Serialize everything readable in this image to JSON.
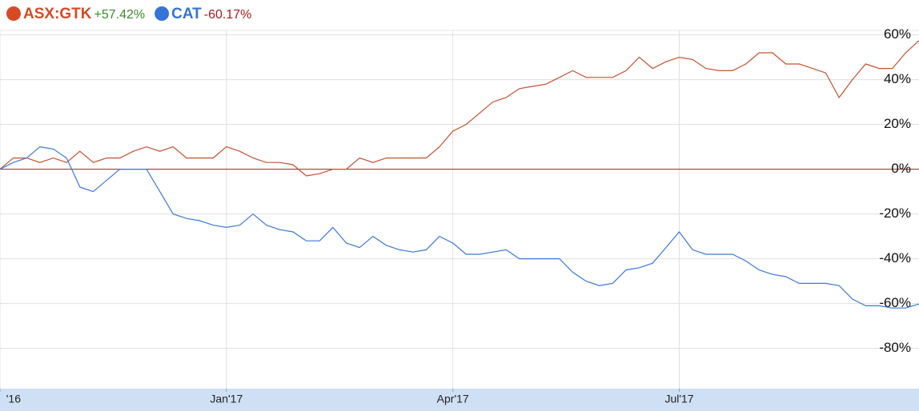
{
  "chart_data": {
    "type": "line",
    "categories": [
      "'16",
      null,
      null,
      null,
      null,
      null,
      null,
      null,
      null,
      null,
      null,
      null,
      null,
      null,
      null,
      null,
      null,
      "Jan'17",
      null,
      null,
      null,
      null,
      null,
      null,
      null,
      null,
      null,
      null,
      null,
      null,
      null,
      null,
      null,
      null,
      "Apr'17",
      null,
      null,
      null,
      null,
      null,
      null,
      null,
      null,
      null,
      null,
      null,
      null,
      null,
      null,
      null,
      null,
      "Jul'17",
      null,
      null,
      null,
      null,
      null,
      null,
      null,
      null,
      null,
      null,
      null,
      null,
      null,
      null,
      null,
      null,
      null,
      null
    ],
    "series": [
      {
        "name": "ASX:GTK",
        "change": "+57.42%",
        "color": "#c4522f",
        "legend_color": "#d84a26",
        "change_color": "#3d8b2e",
        "values": [
          0,
          5,
          5,
          3,
          5,
          3,
          8,
          3,
          5,
          5,
          8,
          10,
          8,
          10,
          5,
          5,
          5,
          10,
          8,
          5,
          3,
          3,
          2,
          -3,
          -2,
          0,
          0,
          5,
          3,
          5,
          5,
          5,
          5,
          10,
          17,
          20,
          25,
          30,
          32,
          36,
          37,
          38,
          41,
          44,
          41,
          41,
          41,
          44,
          50,
          45,
          48,
          50,
          49,
          45,
          44,
          44,
          47,
          52,
          52,
          47,
          47,
          45,
          43,
          32,
          40,
          47,
          45,
          45,
          52,
          57.42
        ]
      },
      {
        "name": "CAT",
        "change": "-60.17%",
        "color": "#3b7ad8",
        "legend_color": "#3574d6",
        "change_color": "#a51d1d",
        "values": [
          0,
          3,
          5,
          10,
          9,
          5,
          -8,
          -10,
          -5,
          0,
          0,
          0,
          -10,
          -20,
          -22,
          -23,
          -25,
          -26,
          -25,
          -20,
          -25,
          -27,
          -28,
          -32,
          -32,
          -26,
          -33,
          -35,
          -30,
          -34,
          -36,
          -37,
          -36,
          -30,
          -33,
          -38,
          -38,
          -37,
          -36,
          -40,
          -40,
          -40,
          -40,
          -46,
          -50,
          -52,
          -51,
          -45,
          -44,
          -42,
          -35,
          -28,
          -36,
          -38,
          -38,
          -38,
          -41,
          -45,
          -47,
          -48,
          -51,
          -51,
          -51,
          -52,
          -58,
          -61,
          -61,
          -62,
          -62,
          -60.17
        ]
      }
    ],
    "ylim": [
      -98,
      62
    ],
    "yticks": [
      {
        "value": -80,
        "label": "-80%"
      },
      {
        "value": -60,
        "label": "-60%"
      },
      {
        "value": -40,
        "label": "-40%"
      },
      {
        "value": -20,
        "label": "-20%"
      },
      {
        "value": 0,
        "label": "0%"
      },
      {
        "value": 20,
        "label": "20%"
      },
      {
        "value": 40,
        "label": "40%"
      },
      {
        "value": 60,
        "label": "60%"
      }
    ],
    "grid": true,
    "zero_line_color": "#8b2a1e",
    "x_axis_band_color": "#cfe0f5"
  }
}
